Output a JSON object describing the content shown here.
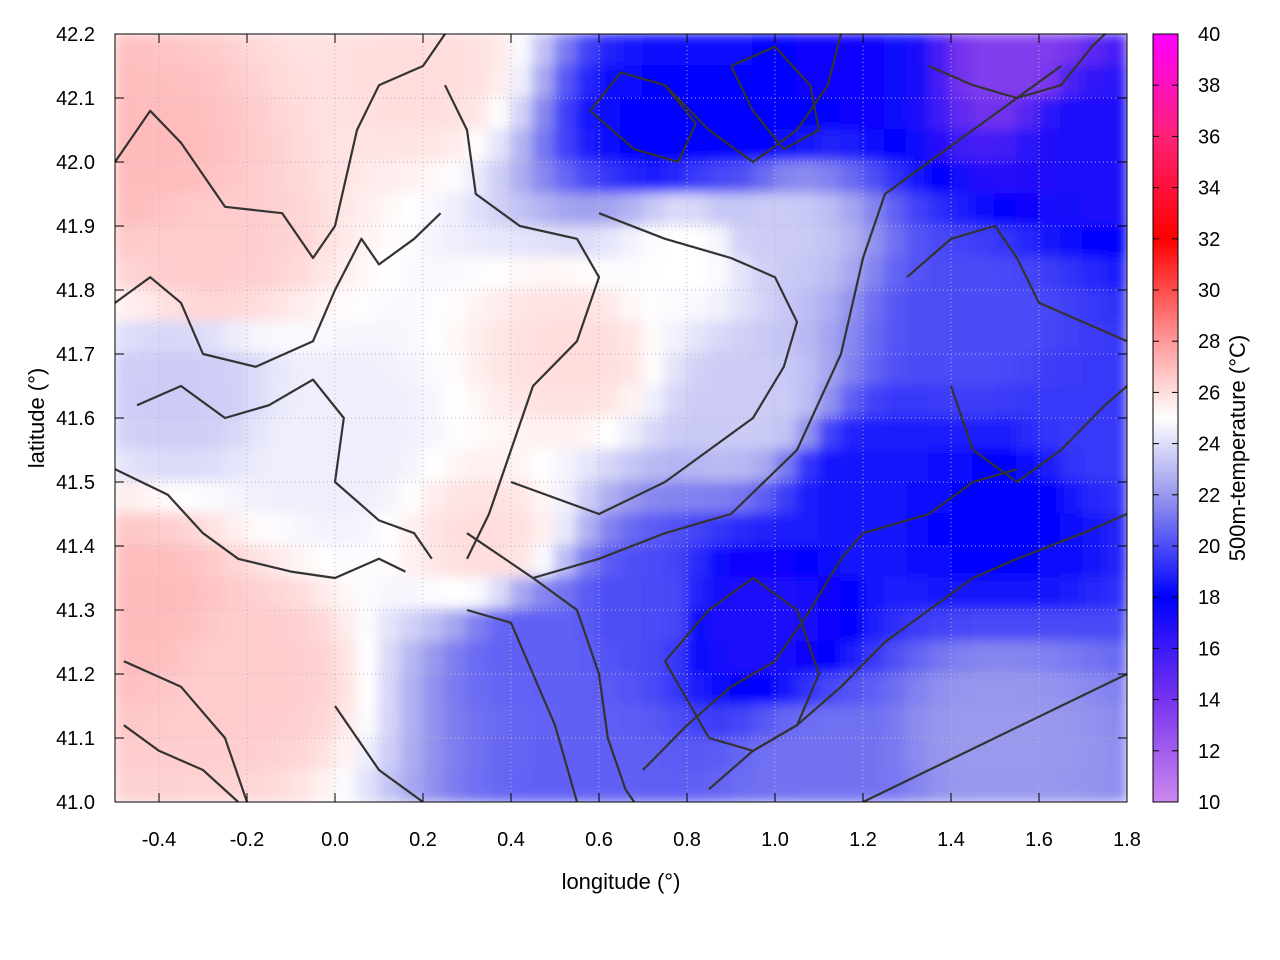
{
  "chart_data": {
    "type": "heatmap",
    "title": "",
    "xlabel": "longitude (°)",
    "ylabel": "latitude (°)",
    "colorbar_label": "500m-temperature (°C)",
    "xlim": [
      -0.5,
      1.8
    ],
    "ylim": [
      41.0,
      42.2
    ],
    "x_ticks": [
      -0.4,
      -0.2,
      0.0,
      0.2,
      0.4,
      0.6,
      0.8,
      1.0,
      1.2,
      1.4,
      1.6,
      1.8
    ],
    "x_tick_labels": [
      "-0.4",
      "-0.2",
      "0.0",
      "0.2",
      "0.4",
      "0.6",
      "0.8",
      "1.0",
      "1.2",
      "1.4",
      "1.6",
      "1.8"
    ],
    "y_ticks": [
      41.0,
      41.1,
      41.2,
      41.3,
      41.4,
      41.5,
      41.6,
      41.7,
      41.8,
      41.9,
      42.0,
      42.1,
      42.2
    ],
    "y_tick_labels": [
      "41.0",
      "41.1",
      "41.2",
      "41.3",
      "41.4",
      "41.5",
      "41.6",
      "41.7",
      "41.8",
      "41.9",
      "42.0",
      "42.1",
      "42.2"
    ],
    "colorbar_range": [
      10,
      40
    ],
    "colorbar_ticks": [
      10,
      12,
      14,
      16,
      18,
      20,
      22,
      24,
      26,
      28,
      30,
      32,
      34,
      36,
      38,
      40
    ],
    "colorbar_tick_labels": [
      "10",
      "12",
      "14",
      "16",
      "18",
      "20",
      "22",
      "24",
      "26",
      "28",
      "30",
      "32",
      "34",
      "36",
      "38",
      "40"
    ],
    "colormap": [
      {
        "value": 10,
        "color": "#cc88ee"
      },
      {
        "value": 14,
        "color": "#7733ee"
      },
      {
        "value": 18,
        "color": "#0000ff"
      },
      {
        "value": 22,
        "color": "#9999ee"
      },
      {
        "value": 25,
        "color": "#ffffff"
      },
      {
        "value": 28,
        "color": "#ff9999"
      },
      {
        "value": 32,
        "color": "#ff0000"
      },
      {
        "value": 36,
        "color": "#ff2277"
      },
      {
        "value": 40,
        "color": "#ff00ff"
      }
    ],
    "grid": true,
    "contours": true,
    "field_description_points": [
      {
        "lon": -0.45,
        "lat": 42.0,
        "value": 27.0
      },
      {
        "lon": -0.3,
        "lat": 41.85,
        "value": 26.5
      },
      {
        "lon": 0.2,
        "lat": 42.15,
        "value": 26.0
      },
      {
        "lon": 0.55,
        "lat": 41.7,
        "value": 26.0
      },
      {
        "lon": -0.45,
        "lat": 41.3,
        "value": 27.0
      },
      {
        "lon": -0.2,
        "lat": 41.2,
        "value": 26.5
      },
      {
        "lon": 0.0,
        "lat": 41.55,
        "value": 24.5
      },
      {
        "lon": -0.35,
        "lat": 41.65,
        "value": 23.5
      },
      {
        "lon": 0.35,
        "lat": 41.4,
        "value": 26.0
      },
      {
        "lon": 0.45,
        "lat": 41.25,
        "value": 20.5
      },
      {
        "lon": 0.75,
        "lat": 42.05,
        "value": 18.0
      },
      {
        "lon": 0.95,
        "lat": 42.05,
        "value": 18.0
      },
      {
        "lon": 0.8,
        "lat": 41.85,
        "value": 25.0
      },
      {
        "lon": 1.0,
        "lat": 41.9,
        "value": 23.5
      },
      {
        "lon": 1.2,
        "lat": 42.15,
        "value": 17.5
      },
      {
        "lon": 1.55,
        "lat": 42.15,
        "value": 13.5
      },
      {
        "lon": 1.7,
        "lat": 42.05,
        "value": 17.0
      },
      {
        "lon": 1.45,
        "lat": 41.75,
        "value": 20.0
      },
      {
        "lon": 1.2,
        "lat": 41.5,
        "value": 18.5
      },
      {
        "lon": 1.5,
        "lat": 41.45,
        "value": 18.0
      },
      {
        "lon": 0.95,
        "lat": 41.28,
        "value": 17.0
      },
      {
        "lon": 0.7,
        "lat": 41.3,
        "value": 20.0
      },
      {
        "lon": 0.6,
        "lat": 41.05,
        "value": 20.5
      },
      {
        "lon": 1.5,
        "lat": 41.1,
        "value": 22.0
      },
      {
        "lon": 1.1,
        "lat": 41.05,
        "value": 21.0
      },
      {
        "lon": 1.75,
        "lat": 41.6,
        "value": 19.5
      },
      {
        "lon": 0.95,
        "lat": 41.62,
        "value": 23.5
      }
    ]
  }
}
